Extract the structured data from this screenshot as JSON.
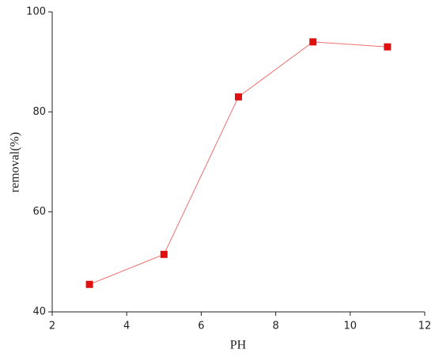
{
  "chart_data": {
    "type": "line",
    "x_label": "PH",
    "y_label": "removal(%)",
    "x": [
      3,
      5,
      7,
      9,
      11
    ],
    "series": [
      {
        "name": "removal",
        "color": "#e01010",
        "line_color": "#f07070",
        "marker": "square",
        "values": [
          45.5,
          51.5,
          83,
          94,
          93
        ]
      }
    ],
    "xlim": [
      2,
      12
    ],
    "xticks": [
      2,
      4,
      6,
      8,
      10,
      12
    ],
    "ylim": [
      40,
      100
    ],
    "yticks": [
      40,
      60,
      80,
      100
    ],
    "grid": false
  }
}
